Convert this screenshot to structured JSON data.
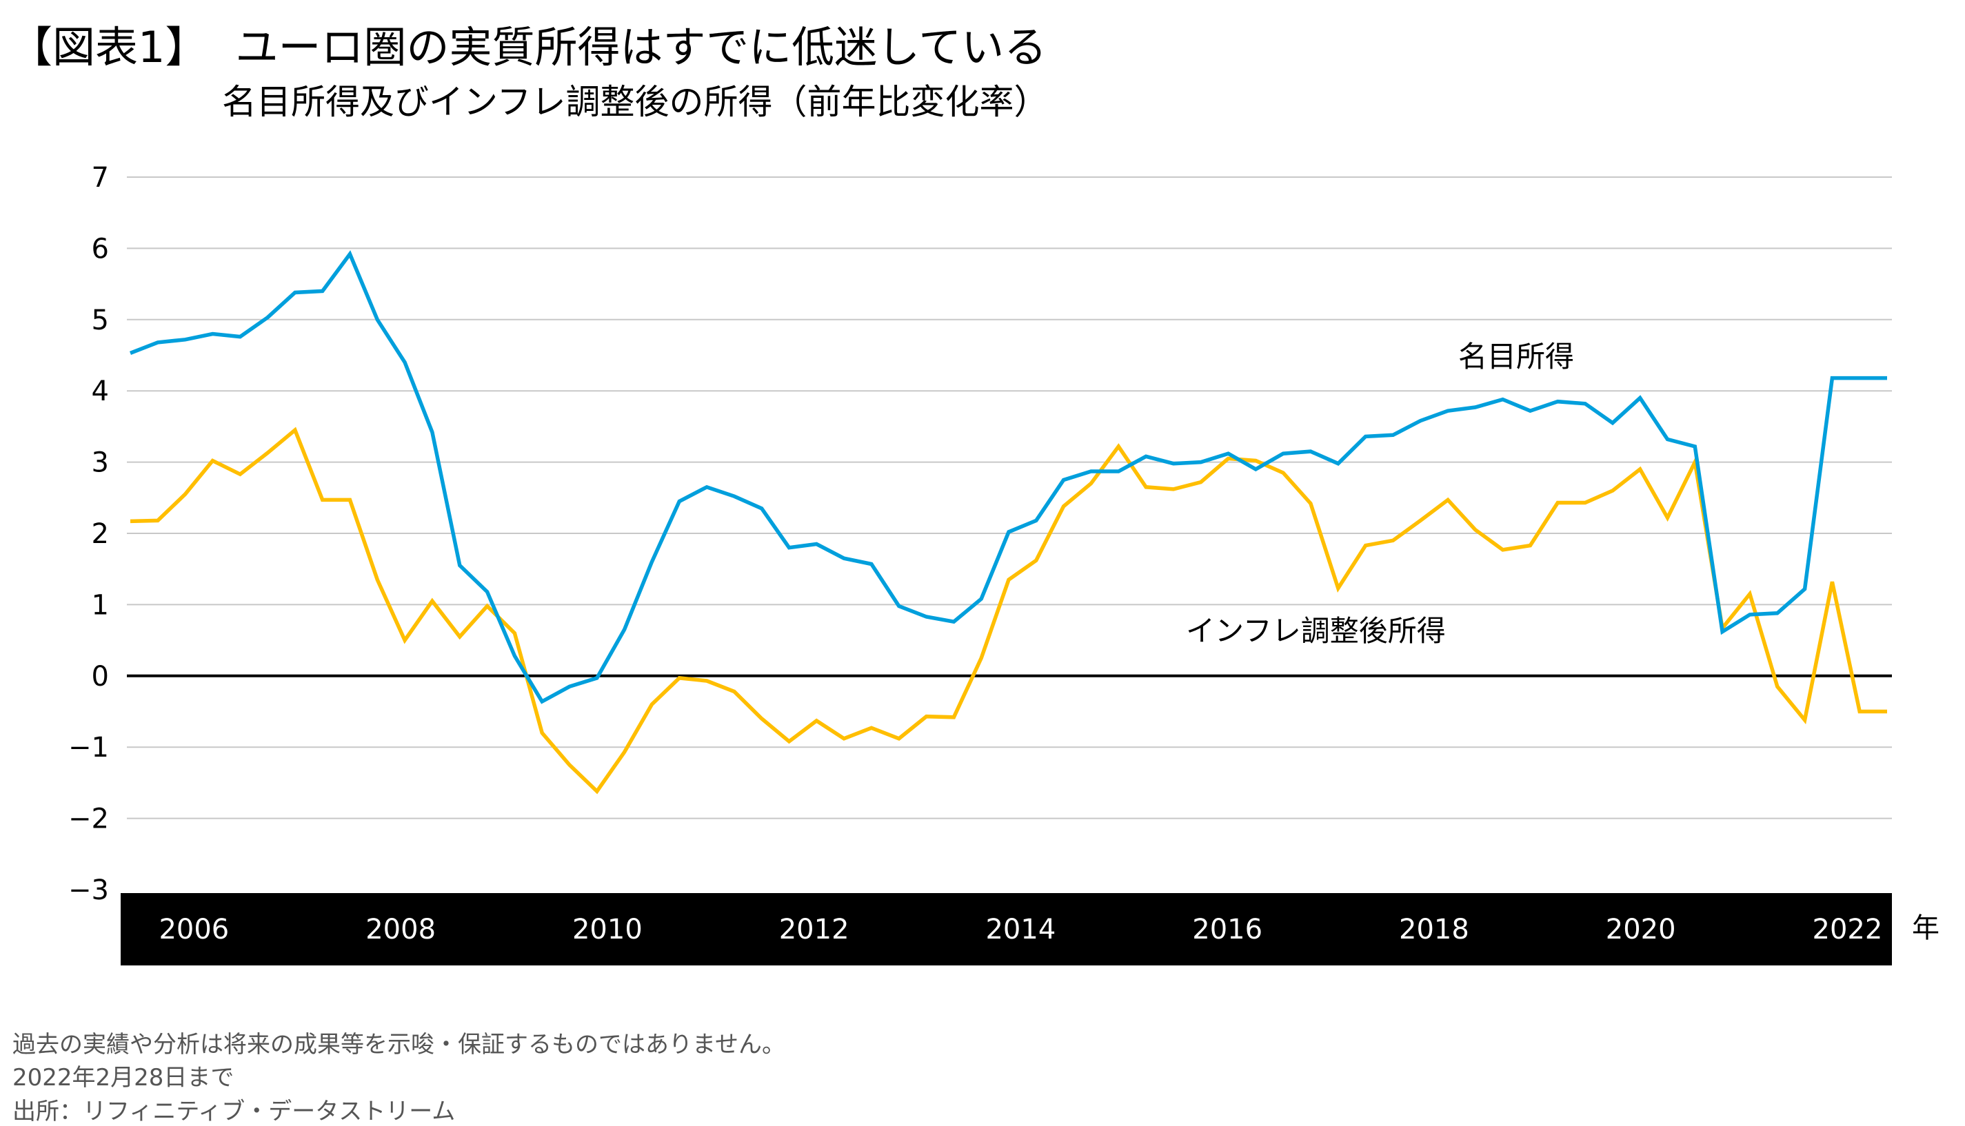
{
  "header": {
    "figure_label": "【図表1】",
    "title": "ユーロ圏の実質所得はすでに低迷している",
    "subtitle": "名目所得及びインフレ調整後の所得（前年比変化率）"
  },
  "chart_data": {
    "type": "line",
    "title": "ユーロ圏の実質所得はすでに低迷している",
    "subtitle": "名目所得及びインフレ調整後の所得（前年比変化率）",
    "xlabel": "年",
    "ylabel": "",
    "ylim": [
      -3,
      7
    ],
    "yticks": [
      7,
      6,
      5,
      4,
      3,
      2,
      1,
      0,
      -1,
      -2,
      -3
    ],
    "ytick_labels": [
      "7",
      "6",
      "5",
      "4",
      "3",
      "2",
      "1",
      "0",
      "−1",
      "−2",
      "−3"
    ],
    "xtick_labels": [
      "2006",
      "2008",
      "2010",
      "2012",
      "2014",
      "2016",
      "2018",
      "2020",
      "2022"
    ],
    "x_frequency": "quarterly",
    "grid": true,
    "zero_line": true,
    "series": [
      {
        "name": "名目所得",
        "color": "#009fdc",
        "values": [
          4.53,
          4.68,
          4.72,
          4.8,
          4.76,
          5.03,
          5.38,
          5.4,
          5.92,
          5.0,
          4.4,
          3.42,
          1.55,
          1.18,
          0.28,
          -0.36,
          -0.15,
          -0.03,
          0.65,
          1.6,
          2.45,
          2.65,
          2.52,
          2.35,
          1.8,
          1.85,
          1.65,
          1.57,
          0.98,
          0.83,
          0.76,
          1.08,
          2.02,
          2.18,
          2.75,
          2.87,
          2.87,
          3.08,
          2.98,
          3.0,
          3.12,
          2.9,
          3.12,
          3.15,
          2.98,
          3.36,
          3.38,
          3.58,
          3.72,
          3.77,
          3.88,
          3.72,
          3.85,
          3.82,
          3.55,
          3.9,
          3.32,
          3.22,
          0.62,
          0.86,
          0.88,
          1.22,
          4.18,
          4.18,
          4.18
        ]
      },
      {
        "name": "インフレ調整後所得",
        "color": "#ffbe00",
        "values": [
          2.17,
          2.18,
          2.55,
          3.02,
          2.83,
          3.13,
          3.45,
          2.47,
          2.47,
          1.35,
          0.5,
          1.05,
          0.55,
          0.98,
          0.6,
          -0.8,
          -1.25,
          -1.62,
          -1.07,
          -0.4,
          -0.03,
          -0.07,
          -0.22,
          -0.6,
          -0.92,
          -0.63,
          -0.88,
          -0.73,
          -0.88,
          -0.57,
          -0.58,
          0.25,
          1.35,
          1.62,
          2.38,
          2.7,
          3.22,
          2.65,
          2.62,
          2.72,
          3.05,
          3.02,
          2.85,
          2.42,
          1.23,
          1.83,
          1.9,
          2.18,
          2.47,
          2.05,
          1.77,
          1.83,
          2.43,
          2.43,
          2.6,
          2.9,
          2.22,
          3.0,
          0.67,
          1.15,
          -0.15,
          -0.62,
          1.32,
          -0.5,
          -0.5
        ]
      }
    ]
  },
  "footer": {
    "disclaimer": "過去の実績や分析は将来の成果等を示唆・保証するものではありません。",
    "date_note": "2022年2月28日まで",
    "source": "出所：リフィニティブ・データストリーム"
  }
}
